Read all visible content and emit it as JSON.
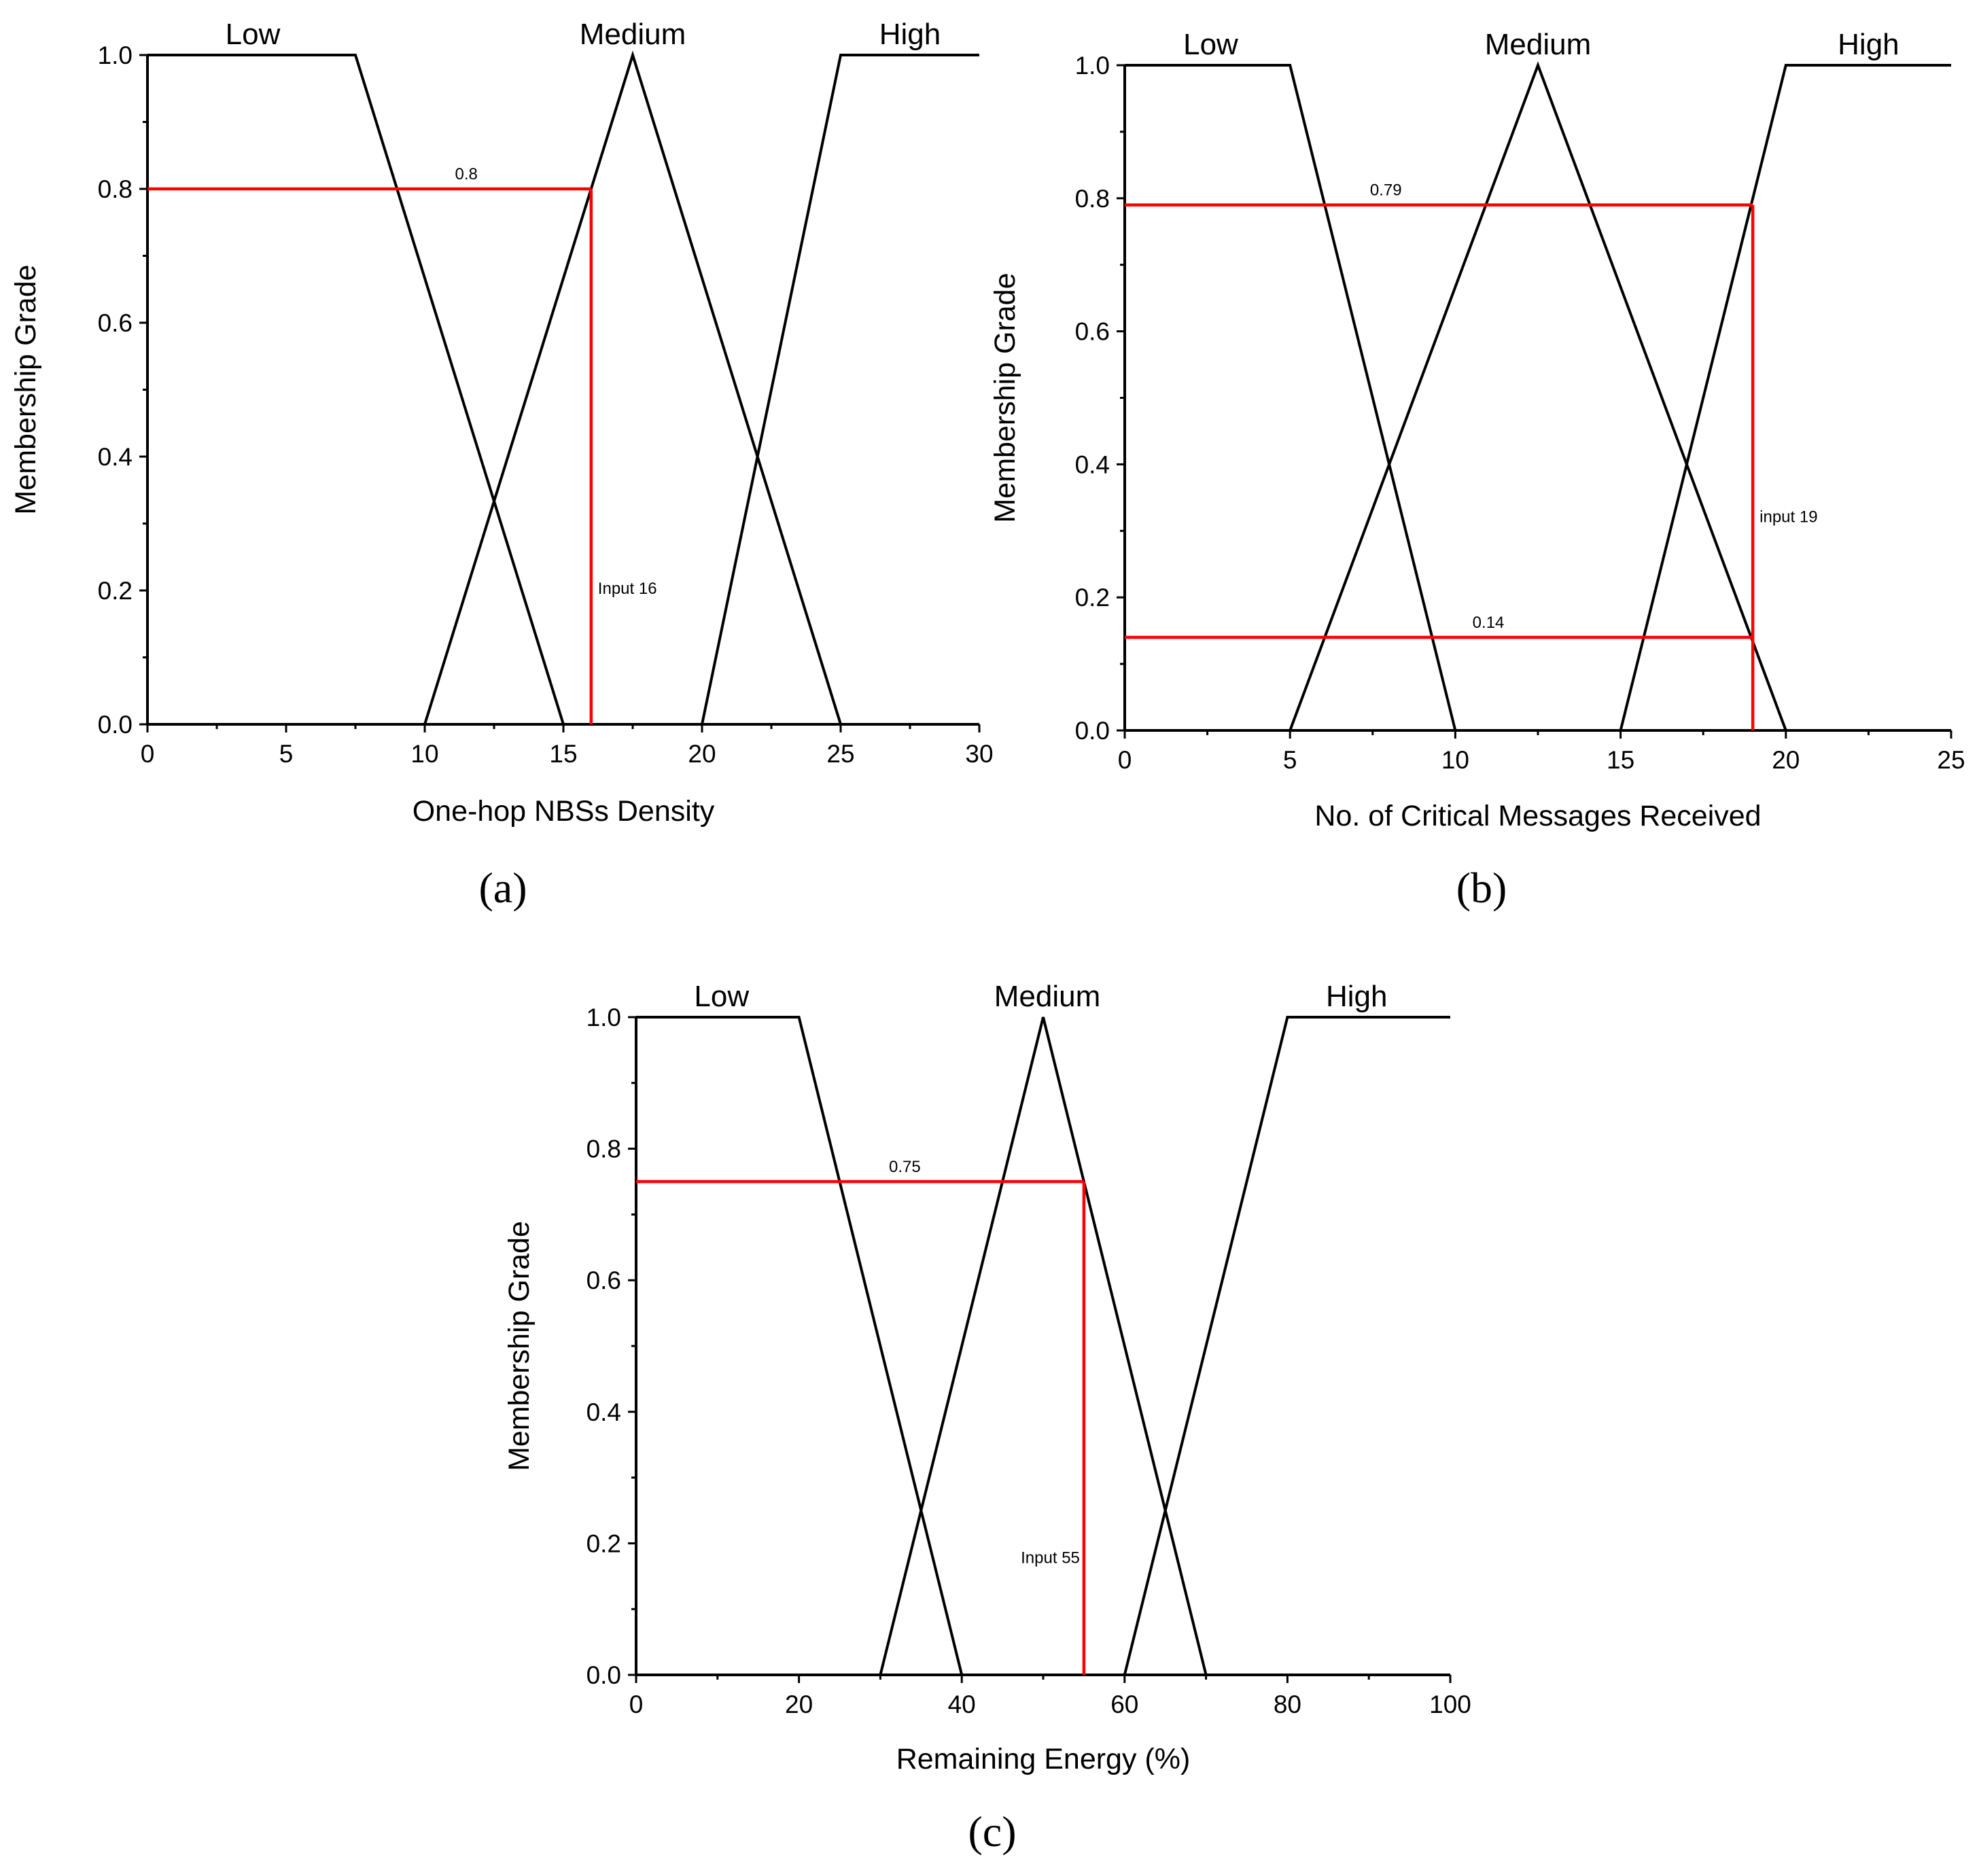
{
  "chart_data": [
    {
      "id": "a",
      "type": "line",
      "panel_label": "(a)",
      "xlabel": "One-hop NBSs Density",
      "ylabel": "Membership Grade",
      "xlim": [
        0,
        30
      ],
      "ylim": [
        0,
        1.0
      ],
      "xticks": [
        0,
        5,
        10,
        15,
        20,
        25,
        30
      ],
      "xtick_labels": [
        "0",
        "5",
        "10",
        "15",
        "20",
        "25",
        "30"
      ],
      "yticks": [
        0,
        0.2,
        0.4,
        0.6,
        0.8,
        1.0
      ],
      "ytick_labels": [
        "0.0",
        "0.2",
        "0.4",
        "0.6",
        "0.8",
        "1.0"
      ],
      "series": [
        {
          "name": "Low",
          "x": [
            0,
            7.5,
            15
          ],
          "y": [
            1,
            1,
            0
          ],
          "label_x": 3.8
        },
        {
          "name": "Medium",
          "x": [
            10,
            17.5,
            25
          ],
          "y": [
            0,
            1,
            0
          ],
          "label_x": 17.5
        },
        {
          "name": "High",
          "x": [
            20,
            25,
            30
          ],
          "y": [
            0,
            1,
            1
          ],
          "label_x": 27.5
        }
      ],
      "input": {
        "value": 16,
        "label": "Input 16"
      },
      "memberships": [
        {
          "value": 0.8,
          "label": "0.8",
          "label_x": 11.5
        }
      ]
    },
    {
      "id": "b",
      "type": "line",
      "panel_label": "(b)",
      "xlabel": "No. of Critical Messages Received",
      "ylabel": "Membership Grade",
      "xlim": [
        0,
        25
      ],
      "ylim": [
        0,
        1.0
      ],
      "xticks": [
        0,
        5,
        10,
        15,
        20,
        25
      ],
      "xtick_labels": [
        "0",
        "5",
        "10",
        "15",
        "20",
        "25"
      ],
      "yticks": [
        0,
        0.2,
        0.4,
        0.6,
        0.8,
        1.0
      ],
      "ytick_labels": [
        "0.0",
        "0.2",
        "0.4",
        "0.6",
        "0.8",
        "1.0"
      ],
      "series": [
        {
          "name": "Low",
          "x": [
            0,
            5,
            10
          ],
          "y": [
            1,
            1,
            0
          ],
          "label_x": 2.6
        },
        {
          "name": "Medium",
          "x": [
            5,
            12.5,
            20
          ],
          "y": [
            0,
            1,
            0
          ],
          "label_x": 12.5
        },
        {
          "name": "High",
          "x": [
            15,
            20,
            25
          ],
          "y": [
            0,
            1,
            1
          ],
          "label_x": 22.5
        }
      ],
      "input": {
        "value": 19,
        "label": "input 19"
      },
      "memberships": [
        {
          "value": 0.79,
          "label": "0.79",
          "label_x": 7.9
        },
        {
          "value": 0.14,
          "label": "0.14",
          "label_x": 11.0
        }
      ]
    },
    {
      "id": "c",
      "type": "line",
      "panel_label": "(c)",
      "xlabel": "Remaining Energy (%)",
      "ylabel": "Membership Grade",
      "xlim": [
        0,
        100
      ],
      "ylim": [
        0,
        1.0
      ],
      "xticks": [
        0,
        20,
        40,
        60,
        80,
        100
      ],
      "xtick_labels": [
        "0",
        "20",
        "40",
        "60",
        "80",
        "100"
      ],
      "yticks": [
        0,
        0.2,
        0.4,
        0.6,
        0.8,
        1.0
      ],
      "ytick_labels": [
        "0.0",
        "0.2",
        "0.4",
        "0.6",
        "0.8",
        "1.0"
      ],
      "series": [
        {
          "name": "Low",
          "x": [
            0,
            20,
            40
          ],
          "y": [
            1,
            1,
            0
          ],
          "label_x": 10.5
        },
        {
          "name": "Medium",
          "x": [
            30,
            50,
            70
          ],
          "y": [
            0,
            1,
            0
          ],
          "label_x": 50.5
        },
        {
          "name": "High",
          "x": [
            60,
            80,
            100
          ],
          "y": [
            0,
            1,
            1
          ],
          "label_x": 88.5
        }
      ],
      "input": {
        "value": 55,
        "label": "Input 55"
      },
      "memberships": [
        {
          "value": 0.75,
          "label": "0.75",
          "label_x": 33
        }
      ]
    }
  ]
}
